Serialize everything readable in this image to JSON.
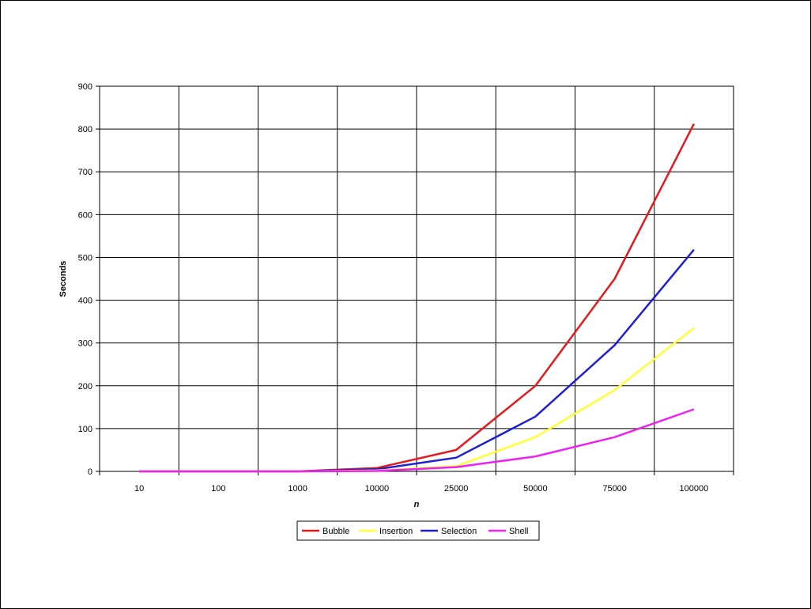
{
  "chart_data": {
    "type": "line",
    "title": "",
    "xlabel": "n",
    "ylabel": "Seconds",
    "categories": [
      "10",
      "100",
      "1000",
      "10000",
      "25000",
      "50000",
      "75000",
      "100000"
    ],
    "ylim": [
      0,
      900
    ],
    "yticks": [
      "0",
      "100",
      "200",
      "300",
      "400",
      "500",
      "600",
      "700",
      "800",
      "900"
    ],
    "grid": true,
    "legend_position": "bottom",
    "series": [
      {
        "name": "Bubble",
        "color": "#e41a1c",
        "values": [
          0,
          0,
          0.02,
          8,
          50,
          200,
          450,
          812
        ]
      },
      {
        "name": "Insertion",
        "color": "#ffff33",
        "values": [
          0,
          0,
          0,
          2,
          12,
          80,
          190,
          335
        ]
      },
      {
        "name": "Selection",
        "color": "#1f1fd6",
        "values": [
          0,
          0,
          0,
          5,
          32,
          128,
          295,
          518
        ]
      },
      {
        "name": "Shell",
        "color": "#ee22ee",
        "values": [
          0,
          0,
          0,
          1,
          10,
          35,
          80,
          145
        ]
      }
    ]
  }
}
